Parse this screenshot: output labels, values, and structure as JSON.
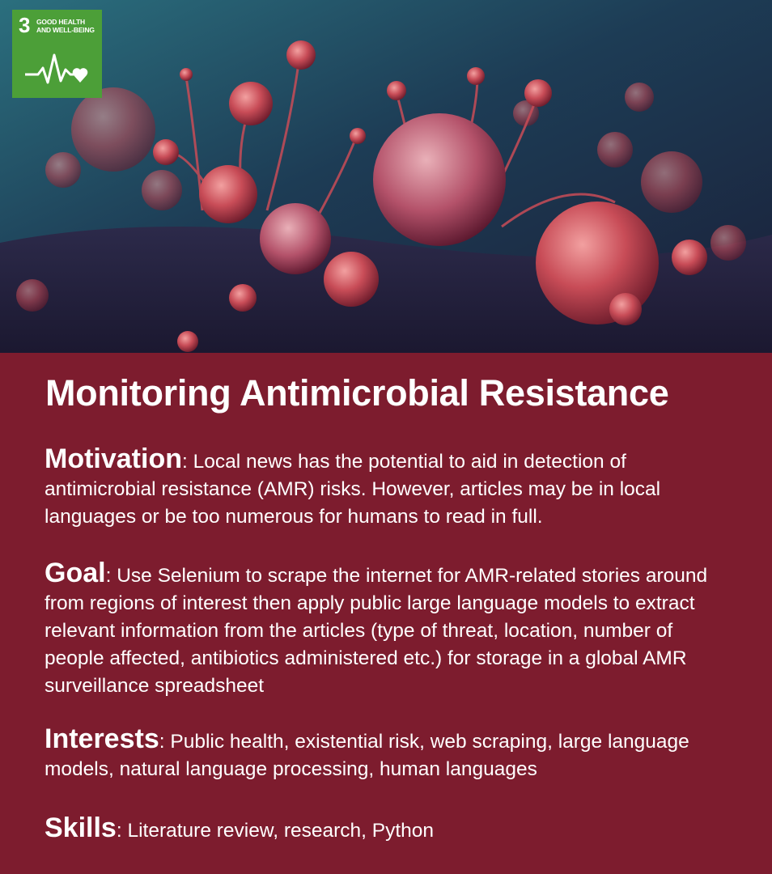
{
  "badge": {
    "number": "3",
    "title_line1": "GOOD HEALTH",
    "title_line2": "AND WELL-BEING"
  },
  "heading": "Monitoring Antimicrobial Resistance",
  "sections": [
    {
      "label": "Motivation",
      "sep": ":",
      "text": " Local news has the potential to aid in detection of antimicrobial resistance (AMR) risks. However, articles may be in local languages or be too numerous for humans to read in full."
    },
    {
      "label": "Goal",
      "sep": ":",
      "text": " Use Selenium to scrape the internet for AMR-related stories around from regions of interest then apply public large language models to extract relevant information from the articles (type of threat, location, number of people affected, antibiotics administered etc.) for storage in a global AMR surveillance spreadsheet"
    },
    {
      "label": "Interests",
      "sep": ":",
      "text": " Public health, existential risk, web scraping, large language models, natural language processing, human languages"
    },
    {
      "label": "Skills",
      "sep": ":",
      "text": " Literature review, research, Python"
    }
  ],
  "colors": {
    "panel": "#7d1c2e",
    "badge": "#4c9f38"
  },
  "icons": [
    "heartbeat-heart-icon"
  ]
}
